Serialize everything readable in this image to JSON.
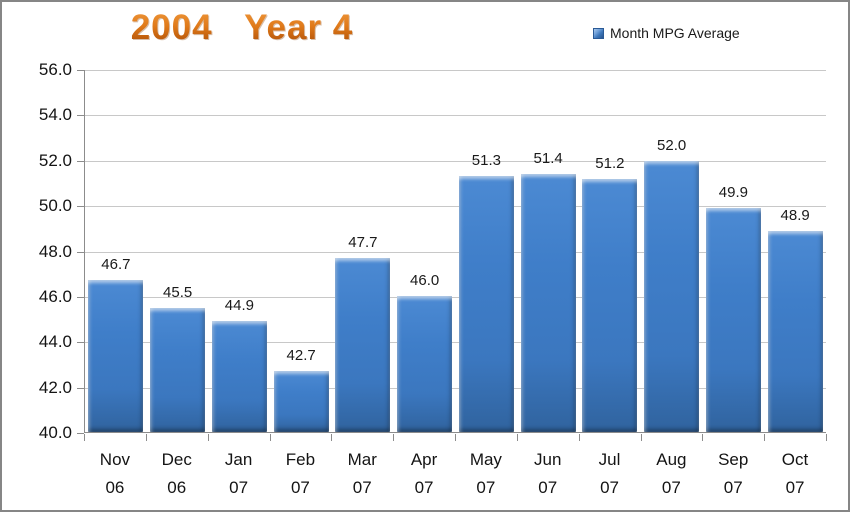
{
  "chart_data": {
    "type": "bar",
    "title": "2004   Year 4",
    "legend_label": "Month MPG Average",
    "legend_position": "top-right",
    "categories": [
      [
        "Nov",
        "06"
      ],
      [
        "Dec",
        "06"
      ],
      [
        "Jan",
        "07"
      ],
      [
        "Feb",
        "07"
      ],
      [
        "Mar",
        "07"
      ],
      [
        "Apr",
        "07"
      ],
      [
        "May",
        "07"
      ],
      [
        "Jun",
        "07"
      ],
      [
        "Jul",
        "07"
      ],
      [
        "Aug",
        "07"
      ],
      [
        "Sep",
        "07"
      ],
      [
        "Oct",
        "07"
      ]
    ],
    "values": [
      46.7,
      45.5,
      44.9,
      42.7,
      47.7,
      46.0,
      51.3,
      51.4,
      51.2,
      52.0,
      49.9,
      48.9
    ],
    "data_labels": [
      "46.7",
      "45.5",
      "44.9",
      "42.7",
      "47.7",
      "46.0",
      "51.3",
      "51.4",
      "51.2",
      "52.0",
      "49.9",
      "48.9"
    ],
    "y_tick_labels": [
      "56.0",
      "54.0",
      "52.0",
      "50.0",
      "48.0",
      "46.0",
      "44.0",
      "42.0",
      "40.0"
    ],
    "ylim": [
      40.0,
      56.0
    ],
    "grid": true,
    "colors": {
      "bar_fill": "#3E7CC6",
      "bar_highlight": "#7FB2E8",
      "bar_shadow": "#2B5C99",
      "title_gradient_top": "#F09A3E",
      "title_gradient_bottom": "#A34D08",
      "gridline": "#C8C8C8",
      "axis_line": "#8C8C8C",
      "text": "#1A1A1A",
      "frame_border": "#868686"
    }
  }
}
